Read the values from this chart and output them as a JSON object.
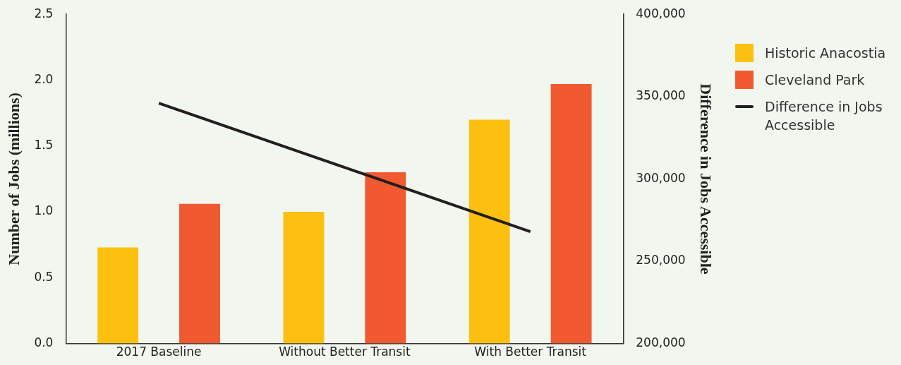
{
  "chart_data": {
    "type": "bar",
    "ylabel": "Number of Jobs (millions)",
    "y2label": "Difference in Jobs Accessible",
    "categories": [
      "2017 Baseline",
      "Without Better Transit",
      "With Better Transit"
    ],
    "series": [
      {
        "name": "Historic Anacostia",
        "color": "#fdc010",
        "values": [
          0.73,
          1.0,
          1.7
        ]
      },
      {
        "name": "Cleveland Park",
        "color": "#f15a30",
        "values": [
          1.06,
          1.3,
          1.97
        ]
      },
      {
        "name": "Difference in Jobs Accessible",
        "type": "line",
        "axis": "y2",
        "color": "#231f20",
        "values": [
          346000,
          307000,
          268000
        ]
      }
    ],
    "ylim": [
      0,
      2.5
    ],
    "yticks": [
      {
        "value": 0,
        "label": "0.0"
      },
      0.5,
      {
        "value": 1,
        "label": "1.0"
      },
      1.5,
      {
        "value": 2,
        "label": "2.0"
      },
      2.5
    ],
    "y2lim": [
      200000,
      400000
    ],
    "y2ticks": [
      {
        "value": 200000,
        "label": "200,000"
      },
      {
        "value": 250000,
        "label": "250,000"
      },
      {
        "value": 300000,
        "label": "300,000"
      },
      {
        "value": 350000,
        "label": "350,000"
      },
      {
        "value": 400000,
        "label": "400,000"
      }
    ],
    "grid": false,
    "legend": "right",
    "marker": "none",
    "line_style": "solid"
  }
}
